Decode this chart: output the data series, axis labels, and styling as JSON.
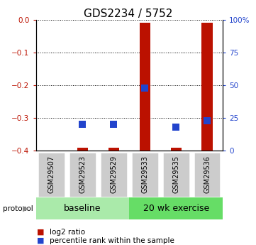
{
  "title": "GDS2234 / 5752",
  "samples": [
    "GSM29507",
    "GSM29523",
    "GSM29529",
    "GSM29533",
    "GSM29535",
    "GSM29536"
  ],
  "log2_ratio": [
    0.0,
    -0.39,
    -0.39,
    -0.01,
    -0.39,
    -0.01
  ],
  "percentile_rank": [
    null,
    20,
    20,
    48,
    18,
    23
  ],
  "ylim_left": [
    -0.4,
    0.0
  ],
  "ylim_right": [
    0,
    100
  ],
  "yticks_left": [
    0,
    -0.1,
    -0.2,
    -0.3,
    -0.4
  ],
  "yticks_right": [
    0,
    25,
    50,
    75,
    100
  ],
  "ytick_labels_right": [
    "0",
    "25",
    "50",
    "75",
    "100%"
  ],
  "groups": [
    {
      "label": "baseline",
      "samples": [
        0,
        1,
        2
      ],
      "color": "#aaeaaa"
    },
    {
      "label": "20 wk exercise",
      "samples": [
        3,
        4,
        5
      ],
      "color": "#66dd66"
    }
  ],
  "bar_color": "#bb1100",
  "dot_color": "#2244cc",
  "bar_width": 0.35,
  "dot_size": 45,
  "sample_box_color": "#cccccc",
  "protocol_label": "protocol",
  "legend_bar_label": "log2 ratio",
  "legend_dot_label": "percentile rank within the sample",
  "title_fontsize": 11,
  "tick_fontsize": 7.5,
  "sample_fontsize": 7,
  "group_fontsize": 9,
  "legend_fontsize": 7.5
}
